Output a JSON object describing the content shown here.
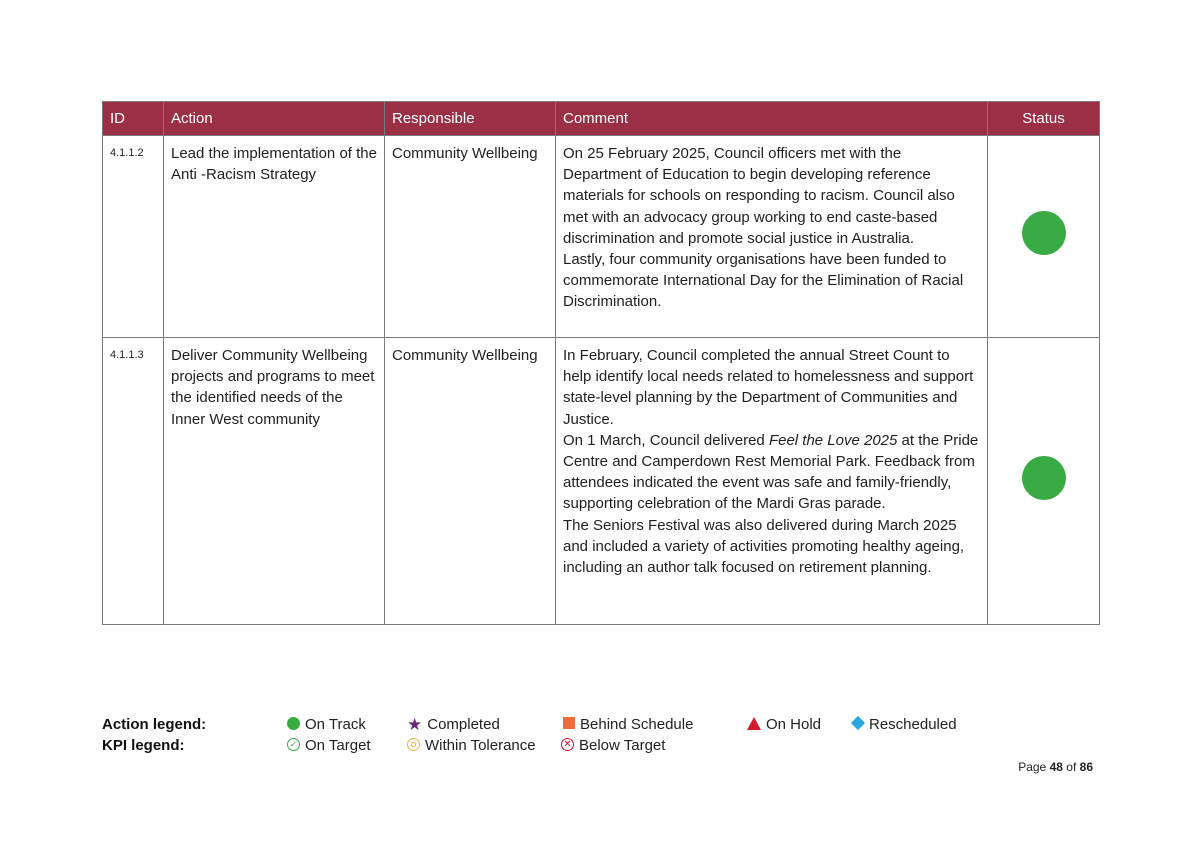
{
  "table": {
    "headers": {
      "id": "ID",
      "action": "Action",
      "responsible": "Responsible",
      "comment": "Comment",
      "status": "Status"
    },
    "status_color": "#3aaa45",
    "header_color": "#9b2f46",
    "rows": [
      {
        "id": "4.1.1.2",
        "action": "Lead the implementation of the Anti -Racism Strategy",
        "responsible": "Community Wellbeing",
        "comment": [
          "On 25 February 2025, Council officers met with the Department of Education to begin developing reference materials for schools on responding to racism. Council also met with an advocacy group working to end caste-based discrimination and promote social justice in Australia.",
          "Lastly, four community organisations have been funded to commemorate International Day for the Elimination of Racial Discrimination."
        ],
        "status": "On Track"
      },
      {
        "id": "4.1.1.3",
        "action": "Deliver Community Wellbeing projects and programs to meet the identified needs of the Inner West community",
        "responsible": "Community Wellbeing",
        "comment_p1": "In February, Council completed the annual Street Count to help identify local needs related to homelessness and support state-level planning by the Department of Communities and Justice.",
        "comment_p2_before": "On 1 March, Council delivered ",
        "comment_p2_italic": "Feel the Love 2025",
        "comment_p2_after": " at the Pride Centre and Camperdown Rest Memorial Park. Feedback from attendees indicated the event was safe and family-friendly, supporting celebration of the Mardi Gras parade.",
        "comment_p3": "The Seniors Festival was also delivered during March 2025 and included a variety of activities promoting healthy ageing, including an author talk focused on retirement planning.",
        "status": "On Track"
      }
    ]
  },
  "legend": {
    "action_title": "Action legend:",
    "kpi_title": "KPI legend:",
    "action_items": [
      {
        "label": "On Track",
        "icon": "green-circle-icon",
        "color": "#3aaa45"
      },
      {
        "label": "Completed",
        "icon": "purple-star-icon",
        "color": "#6b2a7a"
      },
      {
        "label": "Behind Schedule",
        "icon": "orange-square-icon",
        "color": "#f26b3a"
      },
      {
        "label": "On Hold",
        "icon": "red-triangle-icon",
        "color": "#d7182a"
      },
      {
        "label": "Rescheduled",
        "icon": "blue-diamond-icon",
        "color": "#2ba6de"
      }
    ],
    "kpi_items": [
      {
        "label": "On Target",
        "icon": "check-circle-icon",
        "color": "#3aaa45"
      },
      {
        "label": "Within Tolerance",
        "icon": "target-icon",
        "color": "#f1b43a"
      },
      {
        "label": "Below Target",
        "icon": "cross-circle-icon",
        "color": "#d7182a"
      }
    ]
  },
  "page": {
    "prefix": "Page",
    "current": "48",
    "of": "of",
    "total": "86"
  }
}
